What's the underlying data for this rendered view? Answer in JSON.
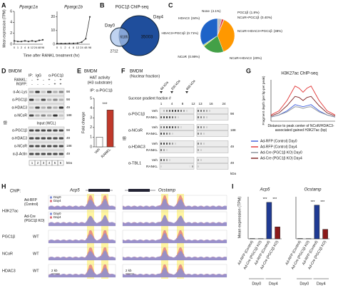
{
  "panels": {
    "letters": [
      "A",
      "B",
      "C",
      "D",
      "E",
      "F",
      "G",
      "H",
      "I"
    ]
  },
  "chart_data": [
    {
      "type": "line",
      "title": "Ppargc1a",
      "ylabel": "Mean expression (TPM)",
      "categories": [
        "0",
        "1",
        "2",
        "4",
        "6",
        "12",
        "24",
        "48",
        "96"
      ],
      "values": [
        0.6,
        0.5,
        0.5,
        0.6,
        0.5,
        0.6,
        0.5,
        0.7,
        0.8
      ],
      "color": "#333333",
      "ylim": [
        0,
        6
      ],
      "yticks": [
        0,
        2,
        4,
        6
      ]
    },
    {
      "type": "line",
      "title": "Ppargc1b",
      "xlabel": "Time after RANKL treatment (hr)",
      "categories": [
        "0",
        "1",
        "2",
        "4",
        "6",
        "12",
        "24",
        "48",
        "96"
      ],
      "values": [
        0.5,
        0.5,
        0.5,
        0.6,
        0.6,
        0.8,
        1.5,
        4,
        20
      ],
      "color": "#333333",
      "ylim": [
        0,
        24
      ],
      "yticks": [
        0,
        10,
        20
      ]
    },
    {
      "type": "venn",
      "title": "PGC1β ChIP-seq",
      "sets": [
        "Day0",
        "Day4"
      ],
      "values": [
        2712,
        6185,
        35003
      ],
      "colors": [
        "#a9c4eb",
        "#1f4e9c"
      ]
    },
    {
      "type": "pie",
      "categories": [
        "None",
        "PGC1β",
        "NCoR+PGC1β",
        "NCoR+HDAC3+PGC1β",
        "NCoR+HDAC3",
        "NCoR",
        "HDAC3+PGC1β",
        "HDAC3"
      ],
      "values": [
        4.1,
        1.8,
        0.4,
        38,
        20,
        0.99,
        0.71,
        34
      ],
      "value_labels": [
        "(4.1%)",
        "(1.8%)",
        "(0.40%)",
        "(38%)",
        "(20%)",
        "(0.99%)",
        "(0.71%)",
        "(34%)"
      ],
      "colors": [
        "#bdbdbd",
        "#e53935",
        "#8e24aa",
        "#ff9800",
        "#43a047",
        "#fdd835",
        "#00acc1",
        "#1e63c8"
      ]
    },
    {
      "type": "bar",
      "title": "BMDM",
      "subtitle": [
        "HAT activity",
        "(H3 substrate)"
      ],
      "note": "IP: α-PGC1β",
      "ylabel": "Fold change",
      "categories": [
        "Veh",
        "RANKL"
      ],
      "values": [
        1,
        3.8
      ],
      "colors": [
        "#ffffff",
        "#c0392b"
      ],
      "ylim": [
        0,
        5
      ],
      "yticks": [
        0,
        1,
        2,
        3,
        4,
        5
      ],
      "annotations": [
        "***"
      ]
    },
    {
      "type": "line",
      "title": "H3K27ac ChIP-seq",
      "ylabel": "Fragment depth (per bp per peak)",
      "xlabel": "Distance to peak center of NCoR/HDAC3-associated gained H3K27ac (bp)",
      "x": [
        -2000,
        -1500,
        -1000,
        -500,
        -250,
        0,
        250,
        500,
        1000,
        1500,
        2000
      ],
      "xlim": [
        -2000,
        2000
      ],
      "ylim": [
        0,
        2
      ],
      "series": [
        {
          "name": "Ad-RFP (Control) Day0",
          "color": "#3b5bdb",
          "values": [
            0.2,
            0.3,
            0.5,
            0.8,
            0.75,
            0.7,
            0.75,
            0.8,
            0.5,
            0.3,
            0.2
          ]
        },
        {
          "name": "Ad-RFP (Control) Day4",
          "color": "#e03131",
          "values": [
            0.3,
            0.5,
            1.0,
            1.7,
            1.6,
            1.4,
            1.6,
            1.7,
            1.0,
            0.5,
            0.3
          ]
        },
        {
          "name": "Ad-Cre (PGC1β KO) Day0",
          "color": "#868e96",
          "values": [
            0.2,
            0.3,
            0.45,
            0.7,
            0.68,
            0.62,
            0.68,
            0.7,
            0.45,
            0.3,
            0.2
          ]
        },
        {
          "name": "Ad-Cre (PGC1β KO) Day4",
          "color": "#7b1e1e",
          "values": [
            0.25,
            0.4,
            0.75,
            1.2,
            1.15,
            1.0,
            1.15,
            1.2,
            0.75,
            0.4,
            0.25
          ]
        }
      ]
    },
    {
      "type": "bar",
      "title": "Acp5",
      "ylabel": "Mean expression (TPM)",
      "categories": [
        "Ad-RFP (Control)",
        "Ad-Cre (PGC1β KO)",
        "Ad-RFP (Control)",
        "Ad-Cre (PGC1β KO)"
      ],
      "groups": [
        "Day0",
        "Day4"
      ],
      "values": [
        20,
        15,
        2600,
        850
      ],
      "colors": [
        "#1f3a93",
        "#8b1a1a",
        "#1f3a93",
        "#8b1a1a"
      ],
      "ylim": [
        0,
        3000
      ],
      "annotations": [
        "***",
        "***"
      ]
    },
    {
      "type": "bar",
      "title": "Ocstamp",
      "categories": [
        "Ad-RFP (Control)",
        "Ad-Cre (PGC1β KO)",
        "Ad-RFP (Control)",
        "Ad-Cre (PGC1β KO)"
      ],
      "groups": [
        "Day0",
        "Day4"
      ],
      "values": [
        15,
        10,
        1600,
        450
      ],
      "colors": [
        "#1f3a93",
        "#8b1a1a",
        "#1f3a93",
        "#8b1a1a"
      ],
      "ylim": [
        0,
        2000
      ],
      "annotations": [
        "***",
        "***"
      ]
    }
  ],
  "blot_d": {
    "title": "BMDM",
    "ip": "IP:",
    "ip_lanes": [
      "IgG",
      "α-PGC1β"
    ],
    "treatments": [
      {
        "label": "RANKL:",
        "signs": [
          "-",
          "+",
          "-",
          "+",
          "-",
          "+"
        ]
      },
      {
        "label": "RGFP:",
        "signs": [
          "-",
          "-",
          "-",
          "-",
          "+",
          "+"
        ]
      }
    ],
    "rows": [
      "α-Ac-Lys",
      "α-PGC1β",
      "α-HDAC3",
      "α-NCoR"
    ],
    "input": "Input (WCL)",
    "input_rows": [
      "α-PGC1β",
      "α-HDAC3",
      "α-NCoR",
      "α-β-Actin"
    ],
    "ib": "IB",
    "kda": [
      "98",
      "98",
      "49",
      "188",
      "98",
      "49",
      "188",
      "49"
    ],
    "kda_unit": "kDa",
    "lanes": [
      "1",
      "2",
      "3",
      "4",
      "5",
      "6"
    ]
  },
  "blot_f": {
    "title": "BMDM",
    "subtitle": "(Nuclear fraction)",
    "markers": [
      "66 kDa",
      "200 kDa",
      "669 kDa"
    ],
    "gradient": "Sucrose gradient fraction #",
    "fractions": [
      "1",
      "4",
      "8",
      "12",
      "13",
      "16",
      "24"
    ],
    "antibodies": [
      "α-PGC1β",
      "α-NCoR",
      "α-HDAC3",
      "α-TBL1"
    ],
    "conditions": [
      "Veh",
      "RANKL"
    ],
    "kda": [
      "98",
      "188",
      "49",
      "49"
    ],
    "kda_unit": "kDa",
    "ib": "IB"
  },
  "tracks_h": {
    "chip": "ChIP:",
    "genes": [
      "Acp5",
      "Ocstamp"
    ],
    "rows": [
      {
        "mark": "H3K27ac",
        "conditions": [
          "Ad-RFP (Control)",
          "Ad-Cre (PGC1β KO)"
        ]
      },
      {
        "mark": "PGC1β",
        "conditions": [
          "WT"
        ]
      },
      {
        "mark": "NCoR",
        "conditions": [
          "WT"
        ]
      },
      {
        "mark": "HDAC3",
        "conditions": [
          "WT"
        ]
      }
    ],
    "legend": [
      "Day0",
      "Day4"
    ],
    "scale": "2 kb"
  }
}
